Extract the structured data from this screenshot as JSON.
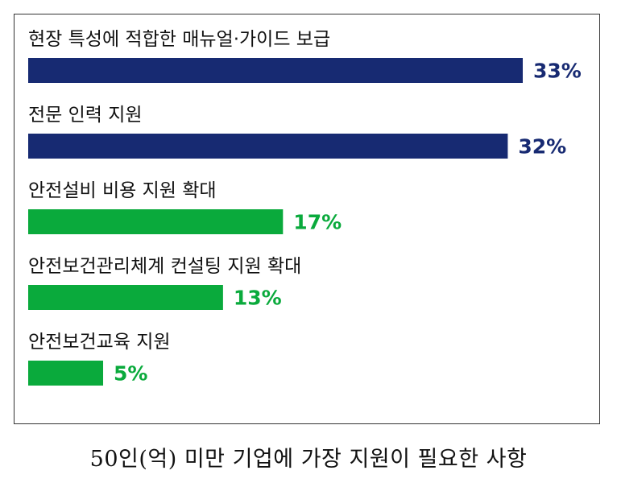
{
  "caption": "50인(억) 미만 기업에 가장 지원이 필요한 사항",
  "colors": {
    "navy": "#172a72",
    "green": "#0aaa3c",
    "frame": "#333333"
  },
  "chart_data": {
    "type": "bar",
    "orientation": "horizontal",
    "categories": [
      "현장 특성에 적합한 매뉴얼·가이드 보급",
      "전문 인력 지원",
      "안전설비 비용 지원 확대",
      "안전보건관리체계 컨설팅 지원 확대",
      "안전보건교육 지원"
    ],
    "values": [
      33,
      32,
      17,
      13,
      5
    ],
    "value_labels": [
      "33%",
      "32%",
      "17%",
      "13%",
      "5%"
    ],
    "bar_colors": [
      "#172a72",
      "#172a72",
      "#0aaa3c",
      "#0aaa3c",
      "#0aaa3c"
    ],
    "unit": "%",
    "xlim": [
      0,
      33
    ],
    "title": "",
    "xlabel": "",
    "ylabel": "",
    "grid": false,
    "legend": "none"
  }
}
